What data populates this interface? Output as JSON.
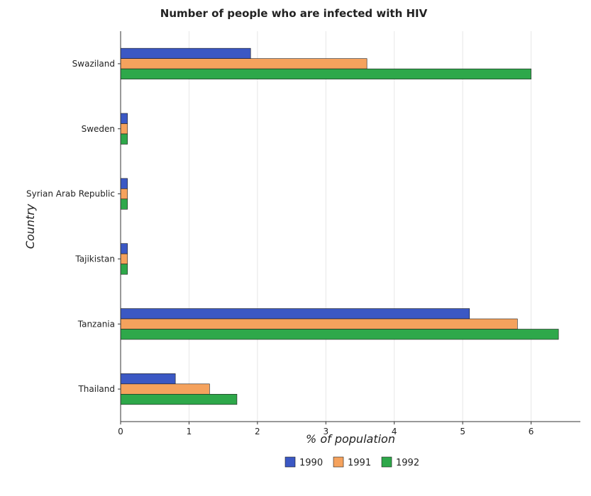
{
  "chart_data": {
    "type": "bar",
    "orientation": "horizontal",
    "title": "Number of people who are infected with HIV",
    "xlabel": "% of population",
    "ylabel": "Country",
    "categories": [
      "Swaziland",
      "Sweden",
      "Syrian Arab Republic",
      "Tajikistan",
      "Tanzania",
      "Thailand"
    ],
    "series": [
      {
        "name": "1990",
        "color": "#3b58c4",
        "values": [
          1.9,
          0.1,
          0.1,
          0.1,
          5.1,
          0.8
        ]
      },
      {
        "name": "1991",
        "color": "#f5a25d",
        "values": [
          3.6,
          0.1,
          0.1,
          0.1,
          5.8,
          1.3
        ]
      },
      {
        "name": "1992",
        "color": "#2ea84a",
        "values": [
          6.0,
          0.1,
          0.1,
          0.1,
          6.4,
          1.7
        ]
      }
    ],
    "xlim": [
      0,
      6.72
    ],
    "xticks": [
      "0",
      "1",
      "2",
      "3",
      "4",
      "5",
      "6"
    ],
    "grid": true,
    "legend_position": "bottom-center"
  }
}
